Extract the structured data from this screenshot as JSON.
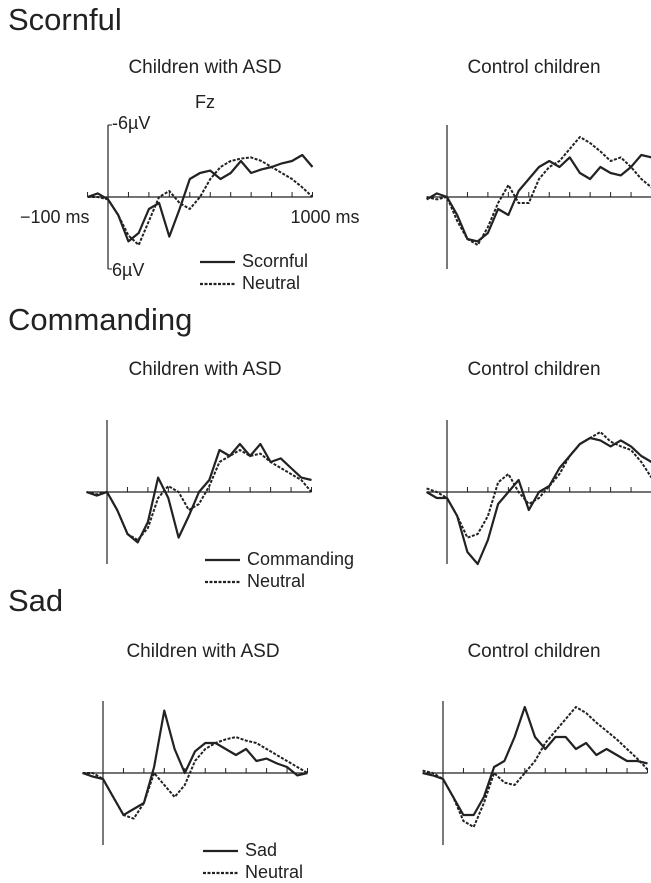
{
  "chart_data": [
    {
      "type": "line",
      "section": "Scornful",
      "title": "Children with ASD",
      "channel": "Fz",
      "xlim": [
        -100,
        1000
      ],
      "ylim": [
        6,
        -6
      ],
      "xticks": [
        {
          "value": -100,
          "label": "−100 ms"
        },
        {
          "value": 1000,
          "label": "1000 ms"
        }
      ],
      "yticks": [
        {
          "value": -6,
          "label": "-6µV"
        },
        {
          "value": 6,
          "label": "6µV"
        }
      ],
      "x": [
        -100,
        -50,
        0,
        50,
        100,
        150,
        200,
        250,
        300,
        350,
        400,
        450,
        500,
        550,
        600,
        650,
        700,
        750,
        800,
        850,
        900,
        950,
        1000
      ],
      "series": [
        {
          "name": "Scornful",
          "style": "solid",
          "color": "#222",
          "values": [
            0,
            -0.3,
            0.2,
            1.5,
            3.7,
            3,
            1,
            0.5,
            3.3,
            1,
            -1.5,
            -2,
            -2.2,
            -1.5,
            -2,
            -3,
            -2,
            -2.3,
            -2.5,
            -2.8,
            -3,
            -3.5,
            -2.5
          ]
        },
        {
          "name": "Neutral",
          "style": "dashed",
          "color": "#222",
          "values": [
            0,
            0,
            0.2,
            1.5,
            3.2,
            4,
            2,
            0,
            -0.5,
            0.5,
            1,
            0,
            -1.5,
            -2.5,
            -3,
            -3.2,
            -3.3,
            -3,
            -2.5,
            -2,
            -1.5,
            -0.8,
            0
          ]
        }
      ]
    },
    {
      "type": "line",
      "title": "Control children",
      "xlim": [
        -100,
        1000
      ],
      "ylim": [
        6,
        -6
      ],
      "x": [
        -100,
        -50,
        0,
        50,
        100,
        150,
        200,
        250,
        300,
        350,
        400,
        450,
        500,
        550,
        600,
        650,
        700,
        750,
        800,
        850,
        900,
        950,
        1000
      ],
      "series": [
        {
          "style": "solid",
          "color": "#222",
          "values": [
            0.2,
            -0.3,
            0,
            1.5,
            3.5,
            3.7,
            3,
            1,
            1.5,
            -0.5,
            -1.5,
            -2.5,
            -3,
            -2.5,
            -3.3,
            -2,
            -1.5,
            -2.5,
            -2,
            -1.8,
            -2.5,
            -3.5,
            -3.3
          ]
        },
        {
          "style": "dashed",
          "color": "#222",
          "values": [
            0,
            0.2,
            0,
            2,
            3.5,
            4,
            2.5,
            0.5,
            -1,
            0.5,
            0.5,
            -1.5,
            -2.5,
            -3,
            -4,
            -5,
            -4.5,
            -3.8,
            -3,
            -3.3,
            -2.5,
            -1.5,
            -0.8
          ]
        }
      ]
    },
    {
      "type": "line",
      "section": "Commanding",
      "title": "Children with ASD",
      "xlim": [
        -100,
        1000
      ],
      "ylim": [
        6,
        -6
      ],
      "x": [
        -100,
        -50,
        0,
        50,
        100,
        150,
        200,
        250,
        300,
        350,
        400,
        450,
        500,
        550,
        600,
        650,
        700,
        750,
        800,
        850,
        900,
        950,
        1000
      ],
      "series": [
        {
          "name": "Commanding",
          "style": "solid",
          "color": "#222",
          "values": [
            0,
            0.3,
            0,
            1.5,
            3.5,
            4.2,
            2.5,
            -1.2,
            0.5,
            3.8,
            2,
            0,
            -1,
            -3.5,
            -3,
            -4,
            -3,
            -4,
            -2.5,
            -2.8,
            -2,
            -1.2,
            -1
          ]
        },
        {
          "name": "Neutral",
          "style": "dashed",
          "color": "#222",
          "values": [
            0,
            0.2,
            0,
            1.5,
            3.5,
            4,
            3,
            0.5,
            -0.5,
            0,
            1.5,
            1,
            -0.5,
            -2.5,
            -3,
            -3.5,
            -3,
            -3.2,
            -2.5,
            -2,
            -1.5,
            -1,
            0
          ]
        }
      ]
    },
    {
      "type": "line",
      "title": "Control children",
      "xlim": [
        -100,
        1000
      ],
      "ylim": [
        6,
        -6
      ],
      "x": [
        -100,
        -50,
        0,
        50,
        100,
        150,
        200,
        250,
        300,
        350,
        400,
        450,
        500,
        550,
        600,
        650,
        700,
        750,
        800,
        850,
        900,
        950,
        1000
      ],
      "series": [
        {
          "style": "solid",
          "color": "#222",
          "values": [
            0,
            0.5,
            0.5,
            2,
            5,
            6,
            4,
            1,
            0,
            -1,
            1.5,
            0,
            -0.5,
            -2,
            -3,
            -4,
            -4.5,
            -4.3,
            -3.8,
            -4.3,
            -3.8,
            -3,
            -2.5
          ]
        },
        {
          "style": "dashed",
          "color": "#222",
          "values": [
            -0.3,
            0,
            0.5,
            2,
            3.8,
            3.5,
            2,
            -0.8,
            -1.5,
            0,
            1,
            0.5,
            -0.5,
            -1.5,
            -3,
            -4,
            -4.5,
            -5,
            -4.2,
            -3.8,
            -3.5,
            -2.5,
            -1.2
          ]
        }
      ]
    },
    {
      "type": "line",
      "section": "Sad",
      "title": "Children with ASD",
      "xlim": [
        -100,
        1000
      ],
      "ylim": [
        6,
        -6
      ],
      "x": [
        -100,
        -50,
        0,
        50,
        100,
        150,
        200,
        250,
        300,
        350,
        400,
        450,
        500,
        550,
        600,
        650,
        700,
        750,
        800,
        850,
        900,
        950,
        1000
      ],
      "series": [
        {
          "name": "Sad",
          "style": "solid",
          "color": "#222",
          "values": [
            0,
            0.3,
            0.5,
            2,
            3.5,
            3,
            2.5,
            -0.5,
            -5.2,
            -2,
            0,
            -1.8,
            -2.5,
            -2.5,
            -2,
            -1.5,
            -2,
            -1,
            -1.2,
            -0.8,
            -0.5,
            0.2,
            0
          ]
        },
        {
          "name": "Neutral",
          "style": "dashed",
          "color": "#222",
          "values": [
            0,
            0,
            0.5,
            2,
            3.5,
            3.8,
            2.5,
            0,
            1,
            2,
            1,
            -1,
            -2,
            -2.5,
            -2.8,
            -3,
            -2.7,
            -2.5,
            -2,
            -1.5,
            -1,
            -0.5,
            0
          ]
        }
      ]
    },
    {
      "type": "line",
      "title": "Control children",
      "xlim": [
        -100,
        1000
      ],
      "ylim": [
        6,
        -6
      ],
      "x": [
        -100,
        -50,
        0,
        50,
        100,
        150,
        200,
        250,
        300,
        350,
        400,
        450,
        500,
        550,
        600,
        650,
        700,
        750,
        800,
        850,
        900,
        950,
        1000
      ],
      "series": [
        {
          "style": "solid",
          "color": "#222",
          "values": [
            0,
            0.2,
            0.5,
            2,
            3.5,
            3.5,
            2,
            -0.5,
            -1,
            -3,
            -5.5,
            -3,
            -2,
            -3,
            -3,
            -2,
            -2.5,
            -1.5,
            -2,
            -1.5,
            -1,
            -1,
            -0.8
          ]
        },
        {
          "style": "dashed",
          "color": "#222",
          "values": [
            -0.2,
            0,
            0.5,
            2,
            4,
            4.5,
            2.5,
            0,
            0.8,
            1,
            0,
            -1,
            -2.5,
            -3.5,
            -4.5,
            -5.5,
            -5,
            -4.2,
            -3.5,
            -2.8,
            -2,
            -1.2,
            -0.3
          ]
        }
      ]
    }
  ]
}
